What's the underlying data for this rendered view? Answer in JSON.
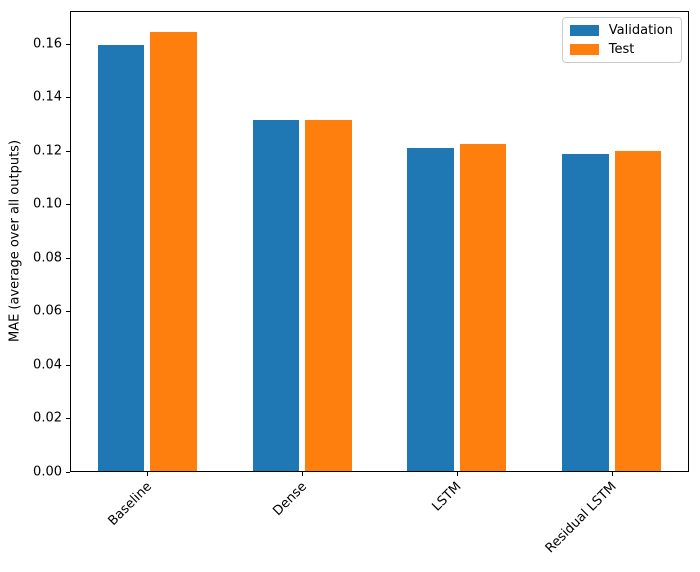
{
  "chart_data": {
    "type": "bar",
    "categories": [
      "Baseline",
      "Dense",
      "LSTM",
      "Residual LSTM"
    ],
    "series": [
      {
        "name": "Validation",
        "color": "#1f77b4",
        "values": [
          0.159,
          0.131,
          0.1205,
          0.1185
        ]
      },
      {
        "name": "Test",
        "color": "#ff7f0e",
        "values": [
          0.164,
          0.131,
          0.122,
          0.1195
        ]
      }
    ],
    "title": "",
    "xlabel": "",
    "ylabel": "MAE (average over all outputs)",
    "ylim": [
      0,
      0.1722
    ],
    "ytick_values": [
      0,
      0.02,
      0.04,
      0.06,
      0.08,
      0.1,
      0.12,
      0.14,
      0.16
    ],
    "ytick_labels": [
      "0.00",
      "0.02",
      "0.04",
      "0.06",
      "0.08",
      "0.10",
      "0.12",
      "0.14",
      "0.16"
    ],
    "grid": false,
    "legend_position": "upper right",
    "x_tick_rotation_deg": 45,
    "bar_width_fraction": 0.3,
    "bar_offset_fraction": 0.17
  },
  "colors": {
    "axis": "#000000",
    "legend_border": "#cccccc",
    "background": "#ffffff"
  }
}
